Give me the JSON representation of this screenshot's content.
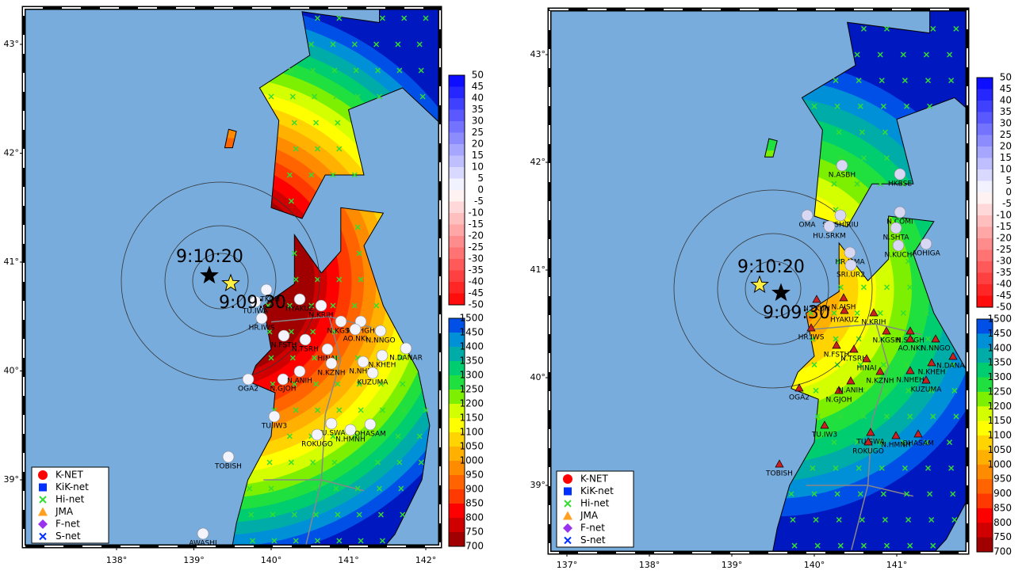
{
  "panels": [
    {
      "time_labels": [
        "9:10:20",
        "9:09:30"
      ],
      "lon_ticks": [
        {
          "value": 138,
          "label": "138°"
        },
        {
          "value": 139,
          "label": "139°"
        },
        {
          "value": 140,
          "label": "140°"
        },
        {
          "value": 141,
          "label": "141°"
        },
        {
          "value": 142,
          "label": "142°"
        }
      ],
      "lat_ticks": [
        {
          "value": 43,
          "label": "43°"
        },
        {
          "value": 42,
          "label": "42°"
        },
        {
          "value": 41,
          "label": "41°"
        },
        {
          "value": 40,
          "label": "40°"
        },
        {
          "value": 39,
          "label": "39°"
        }
      ],
      "stations": [
        "N.TKOH",
        "TU.IWA",
        "HYAKUZ",
        "N.KRIH",
        "HR.IWS",
        "N.FSTH",
        "N.TSRH",
        "HINAI",
        "N.KGSH",
        "N.SHGH",
        "AO.NKI",
        "N.NNGO",
        "N.KZNH",
        "N.KHEH",
        "N.NHEH",
        "KUZUMA",
        "N.DANAR",
        "OGA2",
        "N.GJOH",
        "N.ANIH",
        "TU.IW3",
        "TU.SWA",
        "ROKUGO",
        "N.HMNH",
        "OHASAM",
        "TOBISH",
        "AWASHI"
      ]
    },
    {
      "time_labels": [
        "9:10:20",
        "9:09:30"
      ],
      "lon_ticks": [
        {
          "value": 137,
          "label": "137°"
        },
        {
          "value": 138,
          "label": "138°"
        },
        {
          "value": 139,
          "label": "139°"
        },
        {
          "value": 140,
          "label": "140°"
        },
        {
          "value": 141,
          "label": "141°"
        }
      ],
      "lat_ticks": [
        {
          "value": 43,
          "label": "43°"
        },
        {
          "value": 42,
          "label": "42°"
        },
        {
          "value": 41,
          "label": "41°"
        },
        {
          "value": 40,
          "label": "40°"
        },
        {
          "value": 39,
          "label": "39°"
        }
      ],
      "stations": [
        "N.ASBH",
        "HKBSE",
        "OMA",
        "SU.SHIRIU",
        "HU.SRKM",
        "N.COMI",
        "N.SHTA",
        "N.KUCH",
        "AOHIGA",
        "HR.MMA",
        "SRI.UR2",
        "N.AJSH",
        "N.FKUH",
        "HYAKUZ",
        "N.KRIH",
        "HR.IWS",
        "N.FSTH",
        "N.TSRH",
        "HINAI",
        "N.KGSH",
        "N.SHGH",
        "AO.NKI",
        "N.NNGO",
        "N.KZNH",
        "N.KHEH",
        "N.NHEH",
        "KUZUMA",
        "N.DANAR",
        "OGA2",
        "N.GJOH",
        "N.ANIH",
        "TU.IW3",
        "TU.SWA",
        "ROKUGO",
        "N.HMNH",
        "OHASAM",
        "TOBISH"
      ]
    }
  ],
  "colorbar_difference": [
    50,
    45,
    40,
    35,
    30,
    25,
    20,
    15,
    10,
    5,
    0,
    -5,
    -10,
    -15,
    -20,
    -25,
    -30,
    -35,
    -40,
    -45,
    -50
  ],
  "colorbar_time": [
    1500,
    1450,
    1400,
    1350,
    1300,
    1250,
    1200,
    1150,
    1100,
    1050,
    1000,
    950,
    900,
    850,
    800,
    750,
    700
  ],
  "legend": [
    "K-NET",
    "KiK-net",
    "Hi-net",
    "JMA",
    "F-net",
    "S-net"
  ]
}
